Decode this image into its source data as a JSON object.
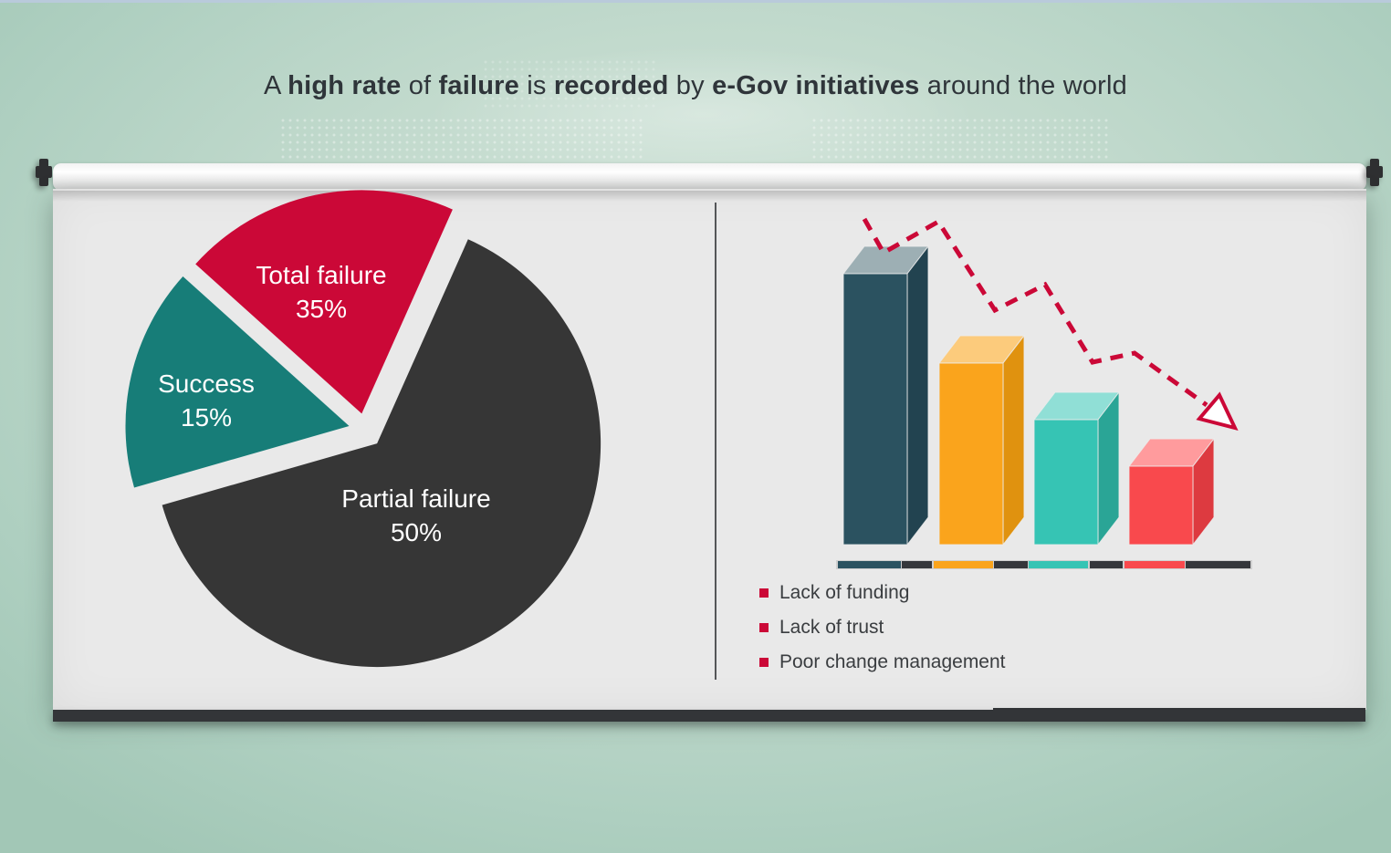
{
  "title": {
    "segments": [
      {
        "text": "A ",
        "bold": false
      },
      {
        "text": "high rate",
        "bold": true
      },
      {
        "text": " of ",
        "bold": false
      },
      {
        "text": "failure",
        "bold": true
      },
      {
        "text": " is ",
        "bold": false
      },
      {
        "text": "recorded",
        "bold": true
      },
      {
        "text": " by ",
        "bold": false
      },
      {
        "text": "e-Gov initiatives",
        "bold": true
      },
      {
        "text": " around the world",
        "bold": false
      }
    ],
    "text_color": "#2f353a"
  },
  "chart_data": [
    {
      "type": "pie",
      "exploded": true,
      "label_color": "#ffffff",
      "slices": [
        {
          "label": "Total failure",
          "value_pct": 35,
          "display": "35%",
          "color": "#cb0837"
        },
        {
          "label": "Success",
          "value_pct": 15,
          "display": "15%",
          "color": "#177d78"
        },
        {
          "label": "Partial failure",
          "value_pct": 50,
          "display": "50%",
          "color": "#363636"
        }
      ]
    },
    {
      "type": "bar",
      "style": "3d",
      "bars": [
        {
          "rel_height": 1.0,
          "front": "#2b5260",
          "top": "#9dafb4",
          "side": "#224350"
        },
        {
          "rel_height": 0.67,
          "front": "#faa41c",
          "top": "#fccb7c",
          "side": "#e0920f"
        },
        {
          "rel_height": 0.46,
          "front": "#36c4b4",
          "top": "#90dfd6",
          "side": "#2aa596"
        },
        {
          "rel_height": 0.29,
          "front": "#f9494d",
          "top": "#ff9b9d",
          "side": "#dd3a40"
        }
      ],
      "baseline_colors": [
        "#2b5260",
        "#35373b",
        "#faa41c",
        "#35373b",
        "#36c4b4",
        "#35373b",
        "#f9494d",
        "#35373b"
      ],
      "trend": {
        "style": "dashed",
        "color": "#cb0837",
        "direction": "declining"
      }
    }
  ],
  "legend": {
    "bullet_color": "#cb0837",
    "items": [
      "Lack of funding",
      "Lack of trust",
      "Poor change management"
    ]
  }
}
